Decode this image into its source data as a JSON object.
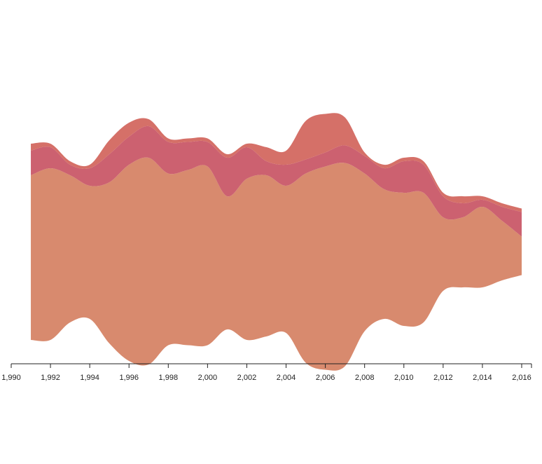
{
  "colors": {
    "series": [
      "#d88a6e",
      "#cc6170",
      "#d57068"
    ],
    "axis": "#222222",
    "background": "#ffffff"
  },
  "chart_data": {
    "type": "area",
    "subtype": "streamgraph",
    "stack_offset": "silhouette",
    "curve": "smooth",
    "title": "",
    "xlabel": "",
    "ylabel": "",
    "xlim": [
      1990,
      2016.5
    ],
    "x_axis": {
      "position": "bottom",
      "tick_values": [
        1990,
        1992,
        1994,
        1996,
        1998,
        2000,
        2002,
        2004,
        2006,
        2008,
        2010,
        2012,
        2014,
        2016
      ],
      "tick_labels": [
        "1,990",
        "1,992",
        "1,994",
        "1,996",
        "1,998",
        "2,000",
        "2,002",
        "2,004",
        "2,006",
        "2,008",
        "2,010",
        "2,012",
        "2,014",
        "2,016"
      ]
    },
    "y_axis": {
      "visible": false
    },
    "grid": false,
    "legend": "none",
    "x": [
      1991,
      1992,
      1993,
      1994,
      1995,
      1996,
      1997,
      1998,
      1999,
      2000,
      2001,
      2002,
      2003,
      2004,
      2005,
      2006,
      2007,
      2008,
      2009,
      2010,
      2011,
      2012,
      2013,
      2014,
      2015,
      2016
    ],
    "series": [
      {
        "values": [
          235,
          245,
          210,
          190,
          230,
          280,
          295,
          245,
          250,
          255,
          190,
          230,
          230,
          210,
          270,
          290,
          290,
          225,
          185,
          190,
          185,
          105,
          100,
          115,
          85,
          55
        ]
      },
      {
        "values": [
          35,
          30,
          15,
          25,
          40,
          40,
          45,
          45,
          40,
          35,
          55,
          45,
          20,
          30,
          20,
          20,
          25,
          25,
          30,
          45,
          40,
          30,
          20,
          10,
          20,
          35
        ]
      },
      {
        "values": [
          10,
          5,
          5,
          5,
          20,
          20,
          10,
          5,
          5,
          5,
          5,
          5,
          20,
          20,
          55,
          55,
          40,
          5,
          5,
          5,
          5,
          5,
          10,
          5,
          5,
          5
        ]
      }
    ]
  }
}
